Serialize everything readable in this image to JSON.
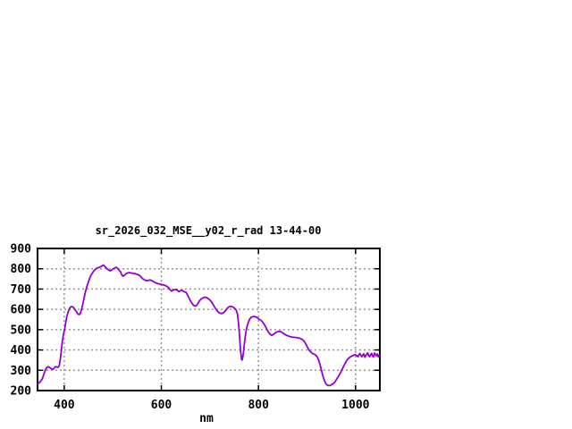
{
  "chart_data": {
    "type": "line",
    "title": "sr_2026_032_MSE__y02_r_rad 13-44-00",
    "xlabel": "nm",
    "ylabel": "",
    "xlim": [
      345,
      1050
    ],
    "ylim": [
      200,
      900
    ],
    "x_ticks": [
      400,
      600,
      800,
      1000
    ],
    "y_ticks": [
      200,
      300,
      400,
      500,
      600,
      700,
      800,
      900
    ],
    "grid": true,
    "legend_position": "none",
    "line_color": "#9400d3",
    "grid_color": "#969696",
    "axis_color": "#000000",
    "background_color": "#ffffff",
    "points": [
      [
        345,
        232
      ],
      [
        348,
        238
      ],
      [
        350,
        242
      ],
      [
        352,
        248
      ],
      [
        355,
        258
      ],
      [
        357,
        272
      ],
      [
        359,
        288
      ],
      [
        361,
        300
      ],
      [
        363,
        310
      ],
      [
        365,
        316
      ],
      [
        367,
        318
      ],
      [
        369,
        315
      ],
      [
        371,
        312
      ],
      [
        374,
        307
      ],
      [
        377,
        305
      ],
      [
        379,
        310
      ],
      [
        381,
        316
      ],
      [
        383,
        318
      ],
      [
        385,
        316
      ],
      [
        387,
        314
      ],
      [
        389,
        320
      ],
      [
        390,
        325
      ],
      [
        392,
        355
      ],
      [
        394,
        395
      ],
      [
        396,
        440
      ],
      [
        398,
        472
      ],
      [
        400,
        495
      ],
      [
        401,
        503
      ],
      [
        403,
        535
      ],
      [
        405,
        560
      ],
      [
        407,
        580
      ],
      [
        409,
        594
      ],
      [
        411,
        604
      ],
      [
        413,
        611
      ],
      [
        415,
        614
      ],
      [
        417,
        613
      ],
      [
        419,
        609
      ],
      [
        421,
        603
      ],
      [
        423,
        596
      ],
      [
        425,
        589
      ],
      [
        427,
        581
      ],
      [
        429,
        576
      ],
      [
        431,
        574
      ],
      [
        433,
        580
      ],
      [
        435,
        594
      ],
      [
        437,
        613
      ],
      [
        439,
        636
      ],
      [
        441,
        658
      ],
      [
        443,
        679
      ],
      [
        445,
        698
      ],
      [
        447,
        715
      ],
      [
        449,
        730
      ],
      [
        451,
        744
      ],
      [
        453,
        757
      ],
      [
        455,
        768
      ],
      [
        457,
        776
      ],
      [
        459,
        783
      ],
      [
        461,
        789
      ],
      [
        463,
        794
      ],
      [
        465,
        799
      ],
      [
        467,
        803
      ],
      [
        469,
        805
      ],
      [
        471,
        806
      ],
      [
        473,
        808
      ],
      [
        475,
        810
      ],
      [
        477,
        813
      ],
      [
        479,
        817
      ],
      [
        481,
        818
      ],
      [
        483,
        813
      ],
      [
        486,
        806
      ],
      [
        489,
        798
      ],
      [
        492,
        792
      ],
      [
        495,
        790
      ],
      [
        498,
        794
      ],
      [
        501,
        799
      ],
      [
        504,
        804
      ],
      [
        507,
        807
      ],
      [
        510,
        802
      ],
      [
        513,
        793
      ],
      [
        516,
        785
      ],
      [
        518,
        772
      ],
      [
        521,
        763
      ],
      [
        524,
        768
      ],
      [
        527,
        775
      ],
      [
        530,
        779
      ],
      [
        534,
        781
      ],
      [
        538,
        779
      ],
      [
        543,
        777
      ],
      [
        548,
        774
      ],
      [
        553,
        770
      ],
      [
        557,
        763
      ],
      [
        561,
        752
      ],
      [
        565,
        746
      ],
      [
        569,
        741
      ],
      [
        573,
        743
      ],
      [
        577,
        745
      ],
      [
        581,
        741
      ],
      [
        585,
        735
      ],
      [
        589,
        730
      ],
      [
        594,
        726
      ],
      [
        600,
        723
      ],
      [
        606,
        719
      ],
      [
        611,
        714
      ],
      [
        615,
        706
      ],
      [
        618,
        697
      ],
      [
        621,
        690
      ],
      [
        624,
        694
      ],
      [
        627,
        697
      ],
      [
        630,
        698
      ],
      [
        633,
        694
      ],
      [
        636,
        688
      ],
      [
        639,
        691
      ],
      [
        642,
        694
      ],
      [
        645,
        690
      ],
      [
        648,
        686
      ],
      [
        651,
        684
      ],
      [
        654,
        670
      ],
      [
        657,
        656
      ],
      [
        660,
        642
      ],
      [
        663,
        630
      ],
      [
        666,
        621
      ],
      [
        669,
        616
      ],
      [
        672,
        618
      ],
      [
        675,
        628
      ],
      [
        678,
        640
      ],
      [
        681,
        649
      ],
      [
        684,
        654
      ],
      [
        687,
        658
      ],
      [
        690,
        660
      ],
      [
        694,
        657
      ],
      [
        697,
        652
      ],
      [
        700,
        646
      ],
      [
        703,
        637
      ],
      [
        706,
        627
      ],
      [
        709,
        614
      ],
      [
        712,
        603
      ],
      [
        715,
        593
      ],
      [
        718,
        585
      ],
      [
        721,
        581
      ],
      [
        724,
        579
      ],
      [
        727,
        582
      ],
      [
        730,
        588
      ],
      [
        733,
        597
      ],
      [
        736,
        606
      ],
      [
        739,
        612
      ],
      [
        742,
        615
      ],
      [
        745,
        614
      ],
      [
        748,
        611
      ],
      [
        751,
        605
      ],
      [
        754,
        597
      ],
      [
        757,
        575
      ],
      [
        759,
        530
      ],
      [
        761,
        470
      ],
      [
        763,
        400
      ],
      [
        765,
        357
      ],
      [
        766,
        350
      ],
      [
        767,
        355
      ],
      [
        769,
        385
      ],
      [
        771,
        430
      ],
      [
        773,
        470
      ],
      [
        775,
        500
      ],
      [
        777,
        522
      ],
      [
        779,
        535
      ],
      [
        782,
        552
      ],
      [
        785,
        560
      ],
      [
        788,
        564
      ],
      [
        791,
        565
      ],
      [
        794,
        563
      ],
      [
        797,
        560
      ],
      [
        800,
        553
      ],
      [
        804,
        548
      ],
      [
        808,
        540
      ],
      [
        812,
        526
      ],
      [
        816,
        508
      ],
      [
        820,
        490
      ],
      [
        824,
        478
      ],
      [
        827,
        472
      ],
      [
        830,
        475
      ],
      [
        834,
        483
      ],
      [
        838,
        489
      ],
      [
        842,
        492
      ],
      [
        846,
        490
      ],
      [
        850,
        484
      ],
      [
        854,
        477
      ],
      [
        858,
        472
      ],
      [
        862,
        468
      ],
      [
        866,
        465
      ],
      [
        870,
        463
      ],
      [
        875,
        462
      ],
      [
        880,
        460
      ],
      [
        885,
        458
      ],
      [
        890,
        452
      ],
      [
        894,
        443
      ],
      [
        897,
        432
      ],
      [
        900,
        418
      ],
      [
        903,
        404
      ],
      [
        906,
        394
      ],
      [
        909,
        387
      ],
      [
        912,
        382
      ],
      [
        915,
        379
      ],
      [
        918,
        374
      ],
      [
        921,
        366
      ],
      [
        924,
        350
      ],
      [
        927,
        326
      ],
      [
        930,
        298
      ],
      [
        933,
        270
      ],
      [
        936,
        248
      ],
      [
        939,
        233
      ],
      [
        942,
        227
      ],
      [
        945,
        224
      ],
      [
        948,
        226
      ],
      [
        951,
        230
      ],
      [
        954,
        234
      ],
      [
        957,
        241
      ],
      [
        960,
        252
      ],
      [
        963,
        263
      ],
      [
        966,
        275
      ],
      [
        969,
        288
      ],
      [
        972,
        303
      ],
      [
        975,
        318
      ],
      [
        978,
        332
      ],
      [
        981,
        345
      ],
      [
        984,
        355
      ],
      [
        987,
        362
      ],
      [
        990,
        367
      ],
      [
        993,
        371
      ],
      [
        996,
        374
      ],
      [
        999,
        377
      ],
      [
        1002,
        372
      ],
      [
        1005,
        367
      ],
      [
        1007,
        377
      ],
      [
        1009,
        383
      ],
      [
        1011,
        372
      ],
      [
        1013,
        367
      ],
      [
        1015,
        376
      ],
      [
        1017,
        381
      ],
      [
        1019,
        364
      ],
      [
        1021,
        371
      ],
      [
        1023,
        379
      ],
      [
        1025,
        386
      ],
      [
        1027,
        372
      ],
      [
        1029,
        367
      ],
      [
        1031,
        378
      ],
      [
        1033,
        383
      ],
      [
        1035,
        369
      ],
      [
        1037,
        365
      ],
      [
        1039,
        385
      ],
      [
        1041,
        377
      ],
      [
        1043,
        371
      ],
      [
        1045,
        381
      ],
      [
        1047,
        366
      ],
      [
        1049,
        374
      ]
    ]
  }
}
